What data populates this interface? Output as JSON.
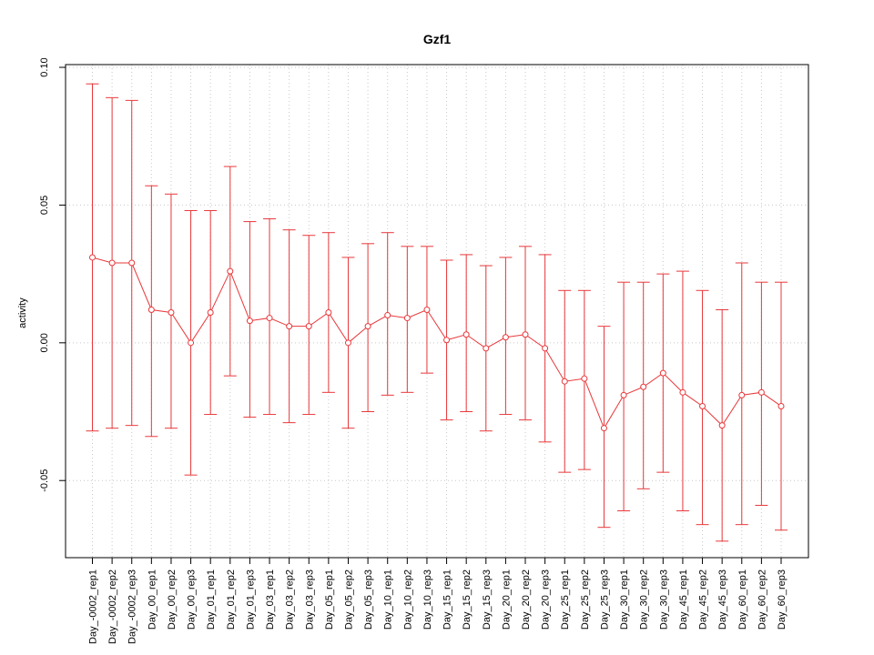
{
  "chart_data": {
    "type": "line",
    "title": "Gzf1",
    "xlabel": "",
    "ylabel": "activity",
    "ylim": [
      -0.078,
      0.101
    ],
    "yticks": [
      -0.05,
      0.0,
      0.05,
      0.1
    ],
    "ytick_labels": [
      "-0.05",
      "0.00",
      "0.05",
      "0.10"
    ],
    "grid": true,
    "color": "#e8383b",
    "grid_color": "#c8c8c8",
    "categories": [
      "Day_-0002_rep1",
      "Day_-0002_rep2",
      "Day_-0002_rep3",
      "Day_00_rep1",
      "Day_00_rep2",
      "Day_00_rep3",
      "Day_01_rep1",
      "Day_01_rep2",
      "Day_01_rep3",
      "Day_03_rep1",
      "Day_03_rep2",
      "Day_03_rep3",
      "Day_05_rep1",
      "Day_05_rep2",
      "Day_05_rep3",
      "Day_10_rep1",
      "Day_10_rep2",
      "Day_10_rep3",
      "Day_15_rep1",
      "Day_15_rep2",
      "Day_15_rep3",
      "Day_20_rep1",
      "Day_20_rep2",
      "Day_20_rep3",
      "Day_25_rep1",
      "Day_25_rep2",
      "Day_25_rep3",
      "Day_30_rep1",
      "Day_30_rep2",
      "Day_30_rep3",
      "Day_45_rep1",
      "Day_45_rep2",
      "Day_45_rep3",
      "Day_60_rep1",
      "Day_60_rep2",
      "Day_60_rep3"
    ],
    "values": [
      0.031,
      0.029,
      0.029,
      0.012,
      0.011,
      0.0,
      0.011,
      0.026,
      0.008,
      0.009,
      0.006,
      0.006,
      0.011,
      0.0,
      0.006,
      0.01,
      0.009,
      0.012,
      0.001,
      0.003,
      -0.002,
      0.002,
      0.003,
      -0.002,
      -0.014,
      -0.013,
      -0.031,
      -0.019,
      -0.016,
      -0.011,
      -0.018,
      -0.023,
      -0.03,
      -0.019,
      -0.018,
      -0.023
    ],
    "upper": [
      0.094,
      0.089,
      0.088,
      0.057,
      0.054,
      0.048,
      0.048,
      0.064,
      0.044,
      0.045,
      0.041,
      0.039,
      0.04,
      0.031,
      0.036,
      0.04,
      0.035,
      0.035,
      0.03,
      0.032,
      0.028,
      0.031,
      0.035,
      0.032,
      0.019,
      0.019,
      0.006,
      0.022,
      0.022,
      0.025,
      0.026,
      0.019,
      0.012,
      0.029,
      0.022,
      0.022
    ],
    "lower": [
      -0.032,
      -0.031,
      -0.03,
      -0.034,
      -0.031,
      -0.048,
      -0.026,
      -0.012,
      -0.027,
      -0.026,
      -0.029,
      -0.026,
      -0.018,
      -0.031,
      -0.025,
      -0.019,
      -0.018,
      -0.011,
      -0.028,
      -0.025,
      -0.032,
      -0.026,
      -0.028,
      -0.036,
      -0.047,
      -0.046,
      -0.067,
      -0.061,
      -0.053,
      -0.047,
      -0.061,
      -0.066,
      -0.072,
      -0.066,
      -0.059,
      -0.068
    ]
  }
}
